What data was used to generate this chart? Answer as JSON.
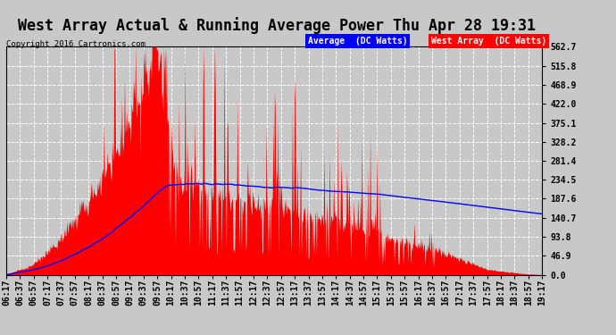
{
  "title": "West Array Actual & Running Average Power Thu Apr 28 19:31",
  "copyright": "Copyright 2016 Cartronics.com",
  "legend_avg": "Average  (DC Watts)",
  "legend_west": "West Array  (DC Watts)",
  "ymin": 0.0,
  "ymax": 562.7,
  "yticks": [
    0.0,
    46.9,
    93.8,
    140.7,
    187.6,
    234.5,
    281.4,
    328.2,
    375.1,
    422.0,
    468.9,
    515.8,
    562.7
  ],
  "background_color": "#c8c8c8",
  "plot_bg_color": "#c8c8c8",
  "grid_color": "white",
  "fill_color": "red",
  "line_color": "blue",
  "title_fontsize": 12,
  "tick_label_fontsize": 7,
  "x_tick_hours": [
    "06:17",
    "06:37",
    "06:57",
    "07:17",
    "07:37",
    "07:57",
    "08:17",
    "08:37",
    "08:57",
    "09:17",
    "09:37",
    "09:57",
    "10:17",
    "10:37",
    "10:57",
    "11:17",
    "11:37",
    "11:57",
    "12:17",
    "12:37",
    "12:57",
    "13:17",
    "13:37",
    "13:57",
    "14:17",
    "14:37",
    "14:57",
    "15:17",
    "15:37",
    "15:57",
    "16:17",
    "16:37",
    "16:57",
    "17:17",
    "17:37",
    "17:57",
    "18:17",
    "18:37",
    "18:57",
    "19:17"
  ]
}
